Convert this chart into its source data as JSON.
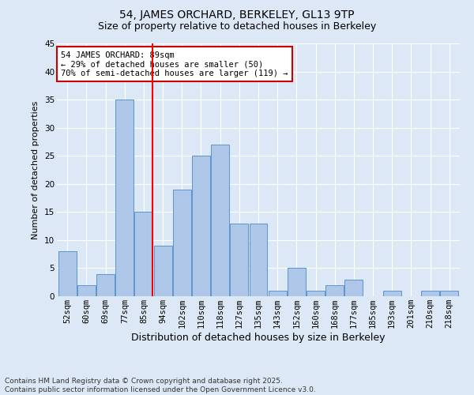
{
  "title1": "54, JAMES ORCHARD, BERKELEY, GL13 9TP",
  "title2": "Size of property relative to detached houses in Berkeley",
  "xlabel": "Distribution of detached houses by size in Berkeley",
  "ylabel": "Number of detached properties",
  "categories": [
    "52sqm",
    "60sqm",
    "69sqm",
    "77sqm",
    "85sqm",
    "94sqm",
    "102sqm",
    "110sqm",
    "118sqm",
    "127sqm",
    "135sqm",
    "143sqm",
    "152sqm",
    "160sqm",
    "168sqm",
    "177sqm",
    "185sqm",
    "193sqm",
    "201sqm",
    "210sqm",
    "218sqm"
  ],
  "values": [
    8,
    2,
    4,
    35,
    15,
    9,
    19,
    25,
    27,
    13,
    13,
    1,
    5,
    1,
    2,
    3,
    0,
    1,
    0,
    1,
    1
  ],
  "bar_color": "#aec6e8",
  "bar_edge_color": "#5a96cc",
  "background_color": "#dce8f5",
  "red_line_x": 4,
  "annotation_text": "54 JAMES ORCHARD: 89sqm\n← 29% of detached houses are smaller (50)\n70% of semi-detached houses are larger (119) →",
  "annotation_box_color": "#ffffff",
  "annotation_box_edge": "#cc0000",
  "ylim": [
    0,
    45
  ],
  "yticks": [
    0,
    5,
    10,
    15,
    20,
    25,
    30,
    35,
    40,
    45
  ],
  "footnote": "Contains HM Land Registry data © Crown copyright and database right 2025.\nContains public sector information licensed under the Open Government Licence v3.0.",
  "title_fontsize": 10,
  "subtitle_fontsize": 9,
  "xlabel_fontsize": 9,
  "ylabel_fontsize": 8,
  "tick_fontsize": 7.5,
  "annotation_fontsize": 7.5,
  "footnote_fontsize": 6.5
}
